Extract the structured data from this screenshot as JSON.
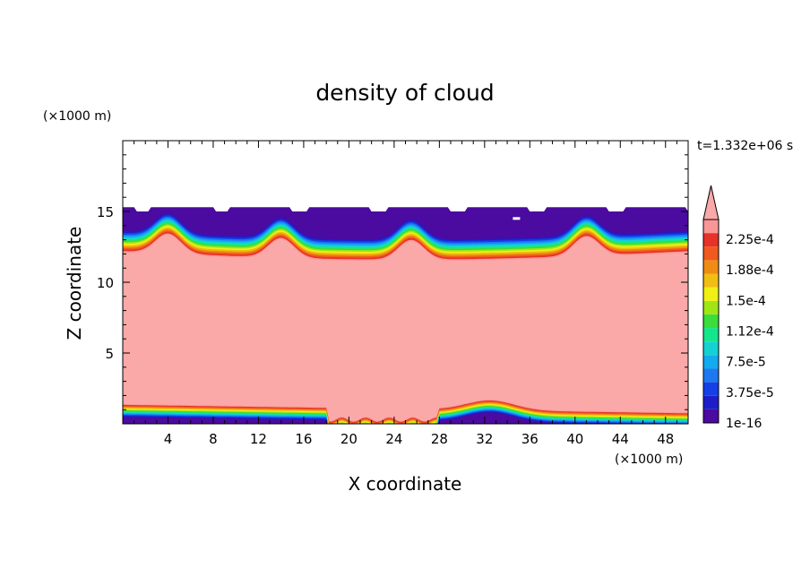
{
  "chart_data": {
    "type": "heatmap",
    "title": "density of cloud",
    "xlabel": "X coordinate",
    "ylabel": "Z coordinate",
    "x_unit": "(×1000 m)",
    "y_unit": "(×1000 m)",
    "time_label": "t=1.332e+06 s",
    "xlim": [
      0,
      50
    ],
    "ylim": [
      0,
      20
    ],
    "x_ticks": [
      4,
      8,
      12,
      16,
      20,
      24,
      28,
      32,
      36,
      40,
      44,
      48
    ],
    "y_ticks": [
      5,
      10,
      15
    ],
    "colorbar": {
      "labels": [
        "2.25e-4",
        "1.88e-4",
        "1.5e-4",
        "1.12e-4",
        "7.5e-5",
        "3.75e-5",
        "1e-16"
      ],
      "colors": [
        "#4b0aa0",
        "#1e1ec8",
        "#1440e6",
        "#1e78f0",
        "#14aaf0",
        "#14d2d2",
        "#14e68c",
        "#3cdc3c",
        "#a0e614",
        "#f0f014",
        "#f0be14",
        "#f08c14",
        "#f05a1e",
        "#e63228",
        "#fa9696"
      ],
      "over_color": "#faa8a8"
    },
    "regions": {
      "cloud_base_km": 0.5,
      "cloud_top_km_mean": 12.2,
      "anvil_top_km": 15.3,
      "cell_centers_km": [
        4,
        14,
        25.5,
        41
      ],
      "colors_high": "#faa8a8",
      "color_low": "#4b0aa0"
    }
  }
}
